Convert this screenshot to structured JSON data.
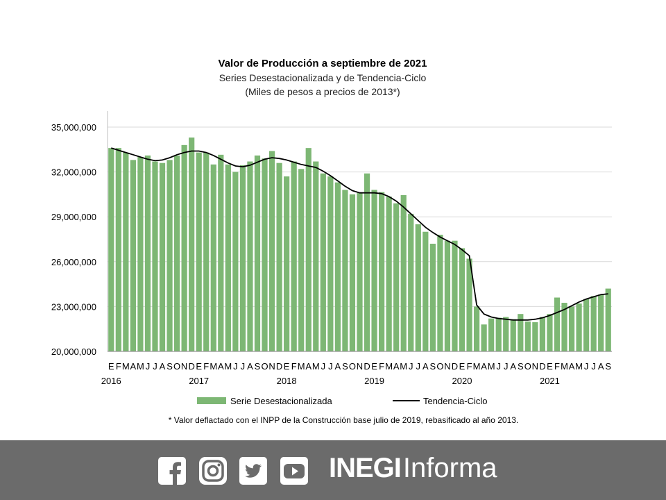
{
  "chart_data": {
    "type": "bar",
    "title": "Valor de Producción a septiembre de 2021",
    "subtitle": "Series Desestacionalizada y de Tendencia-Ciclo",
    "subtitle2": "(Miles de pesos a precios de 2013*)",
    "ylim": [
      20000000,
      35000000
    ],
    "yticks": [
      "20,000,000",
      "23,000,000",
      "26,000,000",
      "29,000,000",
      "32,000,000",
      "35,000,000"
    ],
    "grid": true,
    "legend_position": "bottom",
    "month_labels": [
      "E",
      "F",
      "M",
      "A",
      "M",
      "J",
      "J",
      "A",
      "S",
      "O",
      "N",
      "D",
      "E",
      "F",
      "M",
      "A",
      "M",
      "J",
      "J",
      "A",
      "S",
      "O",
      "N",
      "D",
      "E",
      "F",
      "M",
      "A",
      "M",
      "J",
      "J",
      "A",
      "S",
      "O",
      "N",
      "D",
      "E",
      "F",
      "M",
      "A",
      "M",
      "J",
      "J",
      "A",
      "S",
      "O",
      "N",
      "D",
      "E",
      "F",
      "M",
      "A",
      "M",
      "J",
      "J",
      "A",
      "S",
      "O",
      "N",
      "D",
      "E",
      "F",
      "M",
      "A",
      "M",
      "J",
      "J",
      "A",
      "S"
    ],
    "year_labels": [
      {
        "label": "2016",
        "index": 0
      },
      {
        "label": "2017",
        "index": 12
      },
      {
        "label": "2018",
        "index": 24
      },
      {
        "label": "2019",
        "index": 36
      },
      {
        "label": "2020",
        "index": 48
      },
      {
        "label": "2021",
        "index": 60
      }
    ],
    "series": [
      {
        "name": "Serie Desestacionalizada",
        "type": "bar",
        "color": "#7db774",
        "values": [
          33600000,
          33600000,
          33300000,
          32800000,
          33000000,
          33100000,
          32700000,
          32600000,
          32800000,
          33100000,
          33800000,
          34300000,
          33300000,
          33300000,
          32500000,
          33150000,
          32500000,
          32000000,
          32450000,
          32700000,
          33100000,
          32900000,
          33400000,
          32600000,
          31700000,
          32700000,
          32200000,
          33600000,
          32700000,
          31900000,
          31700000,
          31300000,
          30800000,
          30500000,
          30600000,
          31900000,
          30800000,
          30650000,
          30350000,
          29900000,
          30450000,
          29200000,
          28500000,
          28000000,
          27200000,
          27800000,
          27400000,
          27400000,
          26900000,
          26200000,
          23000000,
          21800000,
          22200000,
          22250000,
          22300000,
          22150000,
          22500000,
          22000000,
          21950000,
          22300000,
          22500000,
          23600000,
          23250000,
          23000000,
          23200000,
          23500000,
          23700000,
          23800000,
          24200000
        ]
      },
      {
        "name": "Tendencia-Ciclo",
        "type": "line",
        "color": "#000000",
        "values": [
          33600000,
          33450000,
          33300000,
          33150000,
          33000000,
          32850000,
          32750000,
          32800000,
          32950000,
          33150000,
          33300000,
          33400000,
          33400000,
          33300000,
          33100000,
          32850000,
          32600000,
          32400000,
          32350000,
          32450000,
          32650000,
          32850000,
          32950000,
          32900000,
          32800000,
          32650000,
          32500000,
          32400000,
          32300000,
          32050000,
          31750000,
          31400000,
          31050000,
          30750000,
          30600000,
          30600000,
          30600000,
          30550000,
          30350000,
          30050000,
          29650000,
          29200000,
          28750000,
          28300000,
          27950000,
          27650000,
          27400000,
          27150000,
          26800000,
          26400000,
          23100000,
          22500000,
          22300000,
          22200000,
          22150000,
          22100000,
          22100000,
          22100000,
          22150000,
          22250000,
          22400000,
          22600000,
          22800000,
          23050000,
          23300000,
          23500000,
          23650000,
          23800000,
          23850000
        ]
      }
    ],
    "note": "* Valor deflactado con el INPP de la Construcción base julio de 2019, rebasificado al año 2013."
  },
  "footer": {
    "background": "#6b6b6b",
    "icons": [
      "facebook-icon",
      "instagram-icon",
      "twitter-icon",
      "youtube-icon"
    ],
    "brand_bold": "INEGI",
    "brand_light": "Informa"
  }
}
